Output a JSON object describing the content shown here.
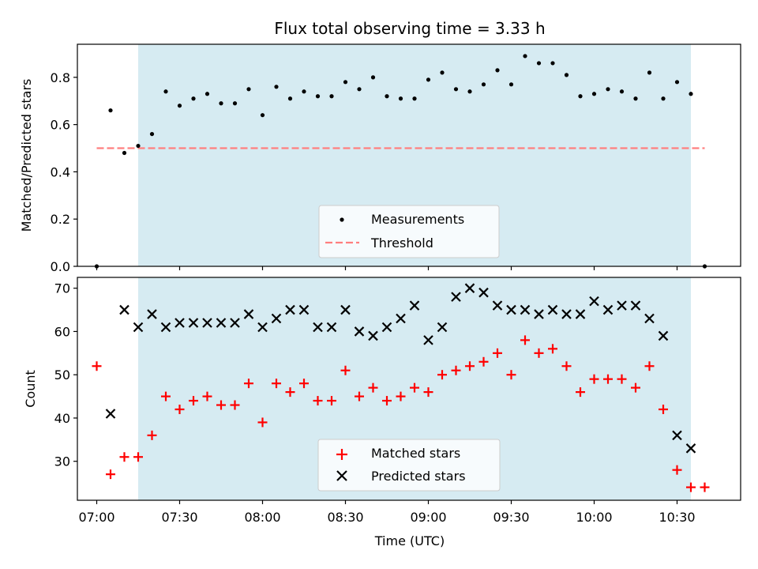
{
  "chart_data": [
    {
      "type": "scatter",
      "title": "Flux total observing time = 3.33 h",
      "ylabel": "Matched/Predicted stars",
      "xlabel": "",
      "ylim": [
        0,
        0.94
      ],
      "yticks": [
        "0.0",
        "0.2",
        "0.4",
        "0.6",
        "0.8"
      ],
      "yticks_values": [
        0,
        0.2,
        0.4,
        0.6,
        0.8
      ],
      "shaded_region": [
        "07:15",
        "10:35"
      ],
      "threshold": {
        "name": "Threshold",
        "value": 0.5,
        "x_range": [
          "07:00",
          "10:40"
        ],
        "color": "#ff7f7f"
      },
      "legend": {
        "placement": "lower center",
        "entries": [
          "Measurements",
          "Threshold"
        ]
      },
      "series": [
        {
          "name": "Measurements",
          "color": "#000000",
          "x": [
            "07:00",
            "07:05",
            "07:10",
            "07:15",
            "07:20",
            "07:25",
            "07:30",
            "07:35",
            "07:40",
            "07:45",
            "07:50",
            "07:55",
            "08:00",
            "08:05",
            "08:10",
            "08:15",
            "08:20",
            "08:25",
            "08:30",
            "08:35",
            "08:40",
            "08:45",
            "08:50",
            "08:55",
            "09:00",
            "09:05",
            "09:10",
            "09:15",
            "09:20",
            "09:25",
            "09:30",
            "09:35",
            "09:40",
            "09:45",
            "09:50",
            "09:55",
            "10:00",
            "10:05",
            "10:10",
            "10:15",
            "10:20",
            "10:25",
            "10:30",
            "10:35",
            "10:40"
          ],
          "y": [
            0.0,
            0.66,
            0.48,
            0.51,
            0.56,
            0.74,
            0.68,
            0.71,
            0.73,
            0.69,
            0.69,
            0.75,
            0.64,
            0.76,
            0.71,
            0.74,
            0.72,
            0.72,
            0.78,
            0.75,
            0.8,
            0.72,
            0.71,
            0.71,
            0.79,
            0.82,
            0.75,
            0.74,
            0.77,
            0.83,
            0.77,
            0.89,
            0.86,
            0.86,
            0.81,
            0.72,
            0.73,
            0.75,
            0.74,
            0.71,
            0.82,
            0.71,
            0.78,
            0.73,
            0.0
          ]
        }
      ]
    },
    {
      "type": "scatter",
      "title": "",
      "ylabel": "Count",
      "xlabel": "Time (UTC)",
      "ylim": [
        21,
        72.5
      ],
      "yticks": [
        "30",
        "40",
        "50",
        "60",
        "70"
      ],
      "yticks_values": [
        30,
        40,
        50,
        60,
        70
      ],
      "xlim": [
        "06:53",
        "10:53"
      ],
      "xticks": [
        "07:00",
        "07:30",
        "08:00",
        "08:30",
        "09:00",
        "09:30",
        "10:00",
        "10:30"
      ],
      "shaded_region": [
        "07:15",
        "10:35"
      ],
      "legend": {
        "placement": "lower center",
        "entries": [
          "Matched stars",
          "Predicted stars"
        ]
      },
      "series": [
        {
          "name": "Matched stars",
          "color": "#ff0000",
          "x": [
            "07:00",
            "07:05",
            "07:10",
            "07:15",
            "07:20",
            "07:25",
            "07:30",
            "07:35",
            "07:40",
            "07:45",
            "07:50",
            "07:55",
            "08:00",
            "08:05",
            "08:10",
            "08:15",
            "08:20",
            "08:25",
            "08:30",
            "08:35",
            "08:40",
            "08:45",
            "08:50",
            "08:55",
            "09:00",
            "09:05",
            "09:10",
            "09:15",
            "09:20",
            "09:25",
            "09:30",
            "09:35",
            "09:40",
            "09:45",
            "09:50",
            "09:55",
            "10:00",
            "10:05",
            "10:10",
            "10:15",
            "10:20",
            "10:25",
            "10:30",
            "10:35",
            "10:40"
          ],
          "y": [
            52,
            27,
            31,
            31,
            36,
            45,
            42,
            44,
            45,
            43,
            43,
            48,
            39,
            48,
            46,
            48,
            44,
            44,
            51,
            45,
            47,
            44,
            45,
            47,
            46,
            50,
            51,
            52,
            53,
            55,
            50,
            58,
            55,
            56,
            52,
            46,
            49,
            49,
            49,
            47,
            52,
            42,
            28,
            24,
            24
          ]
        },
        {
          "name": "Predicted stars",
          "color": "#000000",
          "x": [
            "07:05",
            "07:10",
            "07:15",
            "07:20",
            "07:25",
            "07:30",
            "07:35",
            "07:40",
            "07:45",
            "07:50",
            "07:55",
            "08:00",
            "08:05",
            "08:10",
            "08:15",
            "08:20",
            "08:25",
            "08:30",
            "08:35",
            "08:40",
            "08:45",
            "08:50",
            "08:55",
            "09:00",
            "09:05",
            "09:10",
            "09:15",
            "09:20",
            "09:25",
            "09:30",
            "09:35",
            "09:40",
            "09:45",
            "09:50",
            "09:55",
            "10:00",
            "10:05",
            "10:10",
            "10:15",
            "10:20",
            "10:25",
            "10:30",
            "10:35"
          ],
          "y": [
            41,
            65,
            61,
            64,
            61,
            62,
            62,
            62,
            62,
            62,
            64,
            61,
            63,
            65,
            65,
            61,
            61,
            65,
            60,
            59,
            61,
            63,
            66,
            58,
            61,
            68,
            70,
            69,
            66,
            65,
            65,
            64,
            65,
            64,
            64,
            67,
            65,
            66,
            66,
            63,
            59,
            36,
            33
          ]
        }
      ]
    }
  ]
}
